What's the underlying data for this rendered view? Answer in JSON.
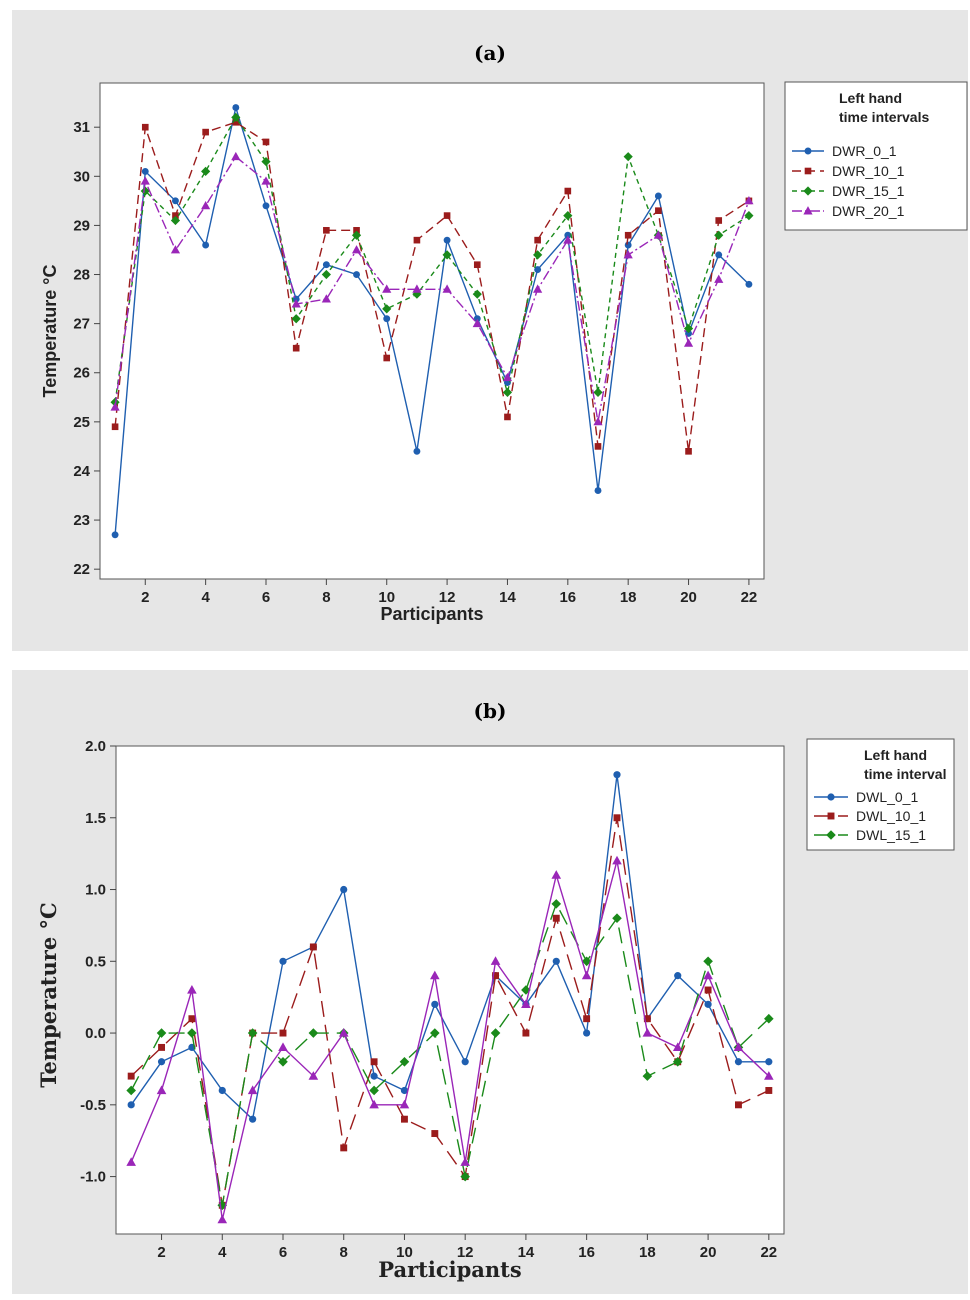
{
  "figure": [
    {
      "panel_label": "(a)",
      "xlabel": "Participants",
      "ylabel": "Temperature °C",
      "legend_title_lines": [
        "Left hand",
        "time intervals"
      ]
    },
    {
      "panel_label": "(b)",
      "xlabel": "Participants",
      "ylabel": "Temperature °C",
      "legend_title_lines": [
        "Left hand",
        "time interval"
      ]
    }
  ],
  "chart_data": [
    {
      "type": "line",
      "title": "(a)",
      "xlabel": "Participants",
      "ylabel": "Temperature °C",
      "x": [
        1,
        2,
        3,
        4,
        5,
        6,
        7,
        8,
        9,
        10,
        11,
        12,
        13,
        14,
        15,
        16,
        17,
        18,
        19,
        20,
        21,
        22
      ],
      "xticks": [
        2,
        4,
        6,
        8,
        10,
        12,
        14,
        16,
        18,
        20,
        22
      ],
      "yticks": [
        22,
        23,
        24,
        25,
        26,
        27,
        28,
        29,
        30,
        31
      ],
      "xlim": [
        0.5,
        22.5
      ],
      "ylim": [
        21.8,
        31.9
      ],
      "grid": false,
      "legend": "right",
      "legend_title": "Left hand time intervals",
      "series": [
        {
          "name": "DWR_0_1",
          "color": "#1f5fb0",
          "marker": "circle",
          "dash": "",
          "values": [
            22.7,
            30.1,
            29.5,
            28.6,
            31.4,
            29.4,
            27.5,
            28.2,
            28.0,
            27.1,
            24.4,
            28.7,
            27.1,
            25.8,
            28.1,
            28.8,
            23.6,
            28.6,
            29.6,
            26.8,
            28.4,
            27.8
          ]
        },
        {
          "name": "DWR_10_1",
          "color": "#9b1c1c",
          "marker": "square",
          "dash": "9 5",
          "values": [
            24.9,
            31.0,
            29.2,
            30.9,
            31.1,
            30.7,
            26.5,
            28.9,
            28.9,
            26.3,
            28.7,
            29.2,
            28.2,
            25.1,
            28.7,
            29.7,
            24.5,
            28.8,
            29.3,
            24.4,
            29.1,
            29.5
          ]
        },
        {
          "name": "DWR_15_1",
          "color": "#1a8a1a",
          "marker": "diamond",
          "dash": "5 4",
          "values": [
            25.4,
            29.7,
            29.1,
            30.1,
            31.2,
            30.3,
            27.1,
            28.0,
            28.8,
            27.3,
            27.6,
            28.4,
            27.6,
            25.6,
            28.4,
            29.2,
            25.6,
            30.4,
            28.8,
            26.9,
            28.8,
            29.2
          ]
        },
        {
          "name": "DWR_20_1",
          "color": "#9a26b8",
          "marker": "triangle",
          "dash": "10 3 2 3",
          "values": [
            25.3,
            29.9,
            28.5,
            29.4,
            30.4,
            29.9,
            27.4,
            27.5,
            28.5,
            27.7,
            27.7,
            27.7,
            27.0,
            25.9,
            27.7,
            28.7,
            25.0,
            28.4,
            28.8,
            26.6,
            27.9,
            29.5
          ]
        }
      ]
    },
    {
      "type": "line",
      "title": "(b)",
      "xlabel": "Participants",
      "ylabel": "Temperature °C",
      "x": [
        1,
        2,
        3,
        4,
        5,
        6,
        7,
        8,
        9,
        10,
        11,
        12,
        13,
        14,
        15,
        16,
        17,
        18,
        19,
        20,
        21,
        22
      ],
      "xticks": [
        2,
        4,
        6,
        8,
        10,
        12,
        14,
        16,
        18,
        20,
        22
      ],
      "yticks": [
        -1.0,
        -0.5,
        0.0,
        0.5,
        1.0,
        1.5,
        2.0
      ],
      "ytick_labels": [
        "-1.0",
        "-0.5",
        "0.0",
        "0.5",
        "1.0",
        "1.5",
        "2.0"
      ],
      "xlim": [
        0.5,
        22.5
      ],
      "ylim": [
        -1.4,
        2.0
      ],
      "grid": false,
      "legend": "right",
      "legend_title": "Left hand time interval",
      "series": [
        {
          "name": "DWL_0_1",
          "color": "#1f5fb0",
          "marker": "circle",
          "dash": "",
          "legend": true,
          "values": [
            -0.5,
            -0.2,
            -0.1,
            -0.4,
            -0.6,
            0.5,
            0.6,
            1.0,
            -0.3,
            -0.4,
            0.2,
            -0.2,
            0.4,
            0.2,
            0.5,
            0.0,
            1.8,
            0.1,
            0.4,
            0.2,
            -0.2,
            -0.2
          ]
        },
        {
          "name": "DWL_10_1",
          "color": "#9b1c1c",
          "marker": "square",
          "dash": "16 8",
          "legend": true,
          "values": [
            -0.3,
            -0.1,
            0.1,
            -1.2,
            0.0,
            0.0,
            0.6,
            -0.8,
            -0.2,
            -0.6,
            -0.7,
            -1.0,
            0.4,
            0.0,
            0.8,
            0.1,
            1.5,
            0.1,
            -0.2,
            0.3,
            -0.5,
            -0.4
          ]
        },
        {
          "name": "DWL_15_1",
          "color": "#1a8a1a",
          "marker": "diamond",
          "dash": "16 8",
          "legend": true,
          "values": [
            -0.4,
            0.0,
            0.0,
            -1.2,
            0.0,
            -0.2,
            0.0,
            0.0,
            -0.4,
            -0.2,
            0.0,
            -1.0,
            0.0,
            0.3,
            0.9,
            0.5,
            0.8,
            -0.3,
            -0.2,
            0.5,
            -0.1,
            0.1
          ]
        },
        {
          "name": "",
          "color": "#9a26b8",
          "marker": "triangle",
          "dash": "",
          "legend": false,
          "values": [
            -0.9,
            -0.4,
            0.3,
            -1.3,
            -0.4,
            -0.1,
            -0.3,
            0.0,
            -0.5,
            -0.5,
            0.4,
            -0.9,
            0.5,
            0.2,
            1.1,
            0.4,
            1.2,
            0.0,
            -0.1,
            0.4,
            -0.1,
            -0.3
          ]
        }
      ]
    }
  ]
}
